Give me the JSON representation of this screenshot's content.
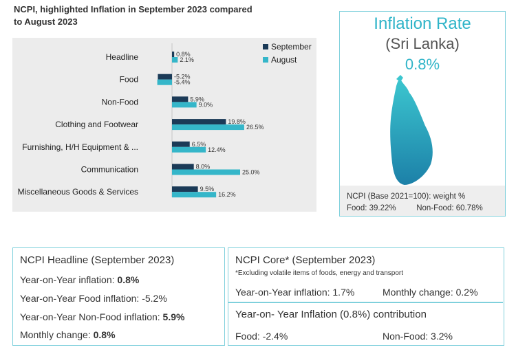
{
  "chart_data": {
    "type": "bar",
    "orientation": "horizontal",
    "title": "NCPI, highlighted Inflation in September 2023 compared to August 2023",
    "categories": [
      "Headline",
      "Food",
      "Non-Food",
      "Clothing and Footwear",
      "Furnishing, H/H Equipment & ...",
      "Communication",
      "Miscellaneous Goods & Services"
    ],
    "series": [
      {
        "name": "September",
        "color": "#1b3a57",
        "values": [
          0.8,
          -5.2,
          5.9,
          19.8,
          6.5,
          8.0,
          9.5
        ],
        "labels": [
          "0.8%",
          "-5.2%",
          "5.9%",
          "19.8%",
          "6.5%",
          "8.0%",
          "9.5%"
        ]
      },
      {
        "name": "August",
        "color": "#35b6c9",
        "values": [
          2.1,
          -5.4,
          9.0,
          26.5,
          12.4,
          25.0,
          16.2
        ],
        "labels": [
          "2.1%",
          "-5.4%",
          "9.0%",
          "26.5%",
          "12.4%",
          "25.0%",
          "16.2%"
        ]
      }
    ],
    "legend": "top-right",
    "xlim": [
      -6,
      27
    ]
  },
  "inflation": {
    "title": "Inflation Rate",
    "country": "(Sri Lanka)",
    "value": "0.8%",
    "weights_title": "NCPI (Base 2021=100): weight %",
    "food_weight": "Food: 39.22%",
    "nonfood_weight": "Non-Food: 60.78%"
  },
  "headline": {
    "title": "NCPI Headline (September 2023)",
    "yoy_label": "Year-on-Year inflation: ",
    "yoy_value": "0.8%",
    "food_label": "Year-on-Year Food inflation: ",
    "food_value": "-5.2%",
    "nonfood_label": "Year-on-Year Non-Food inflation: ",
    "nonfood_value": "5.9%",
    "monthly_label": "Monthly change: ",
    "monthly_value": "0.8%"
  },
  "core": {
    "title": "NCPI Core* (September 2023)",
    "note": "*Excluding volatile items of foods, energy and transport",
    "yoy": "Year-on-Year inflation: 1.7%",
    "monthly": "Monthly change: 0.2%"
  },
  "contribution": {
    "title": "Year-on- Year Inflation (0.8%) contribution",
    "food": "Food: -2.4%",
    "nonfood": "Non-Food: 3.2%"
  },
  "colors": {
    "accent": "#35b6c9",
    "dark": "#1b3a57",
    "border": "#7fd0dc"
  }
}
